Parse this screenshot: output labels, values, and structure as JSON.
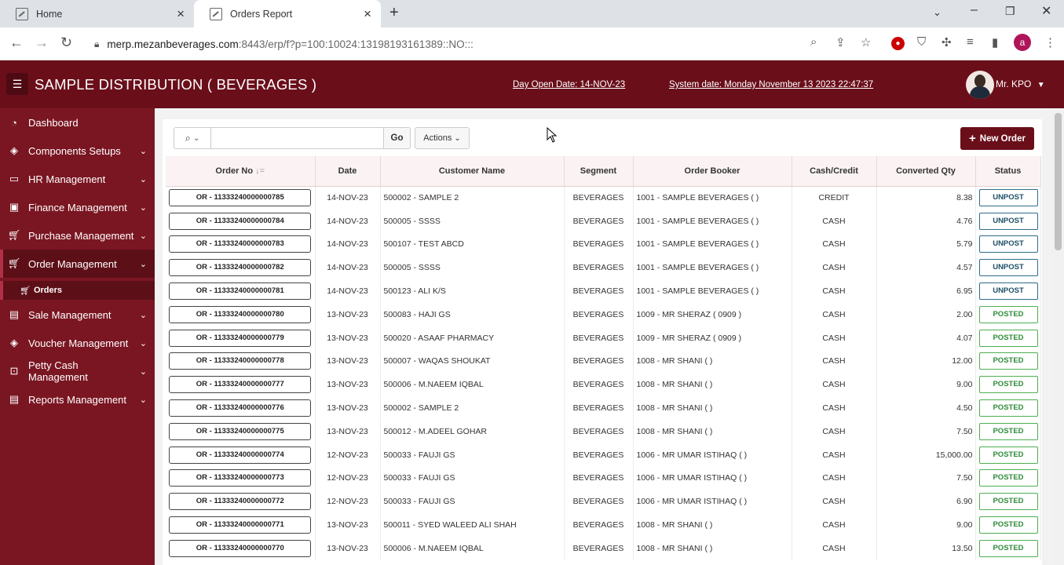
{
  "browser": {
    "tabs": [
      {
        "label": "Home"
      },
      {
        "label": "Orders Report"
      }
    ],
    "url_host": "merp.mezanbeverages.com",
    "url_rest": ":8443/erp/f?p=100:10024:13198193161389::NO:::"
  },
  "header": {
    "title": "SAMPLE DISTRIBUTION ( BEVERAGES )",
    "day_open": "Day Open Date: 14-NOV-23",
    "system_date": "System date: Monday November 13 2023 22:47:37",
    "user": "Mr. KPO"
  },
  "sidebar": {
    "items": [
      {
        "label": "Dashboard",
        "icon": "dashboard-icon"
      },
      {
        "label": "Components Setups",
        "icon": "layers-icon"
      },
      {
        "label": "HR Management",
        "icon": "user-card-icon"
      },
      {
        "label": "Finance Management",
        "icon": "money-icon"
      },
      {
        "label": "Purchase Management",
        "icon": "cart-icon"
      },
      {
        "label": "Order Management",
        "icon": "cart-icon"
      },
      {
        "label": "Sale Management",
        "icon": "document-icon"
      },
      {
        "label": "Voucher Management",
        "icon": "layers-icon"
      },
      {
        "label": "Petty Cash Management",
        "icon": "inbox-icon"
      },
      {
        "label": "Reports Management",
        "icon": "document-icon"
      }
    ],
    "sub_item": "Orders"
  },
  "toolbar": {
    "search_placeholder": "",
    "go_label": "Go",
    "actions_label": "Actions",
    "new_order_label": "New Order"
  },
  "table": {
    "headers": [
      "Order No",
      "Date",
      "Customer Name",
      "Segment",
      "Order Booker",
      "Cash/Credit",
      "Converted Qty",
      "Status"
    ],
    "rows": [
      {
        "order": "OR - 11333240000000785",
        "date": "14-NOV-23",
        "customer": "500002 - SAMPLE 2",
        "segment": "BEVERAGES",
        "booker": "1001 - SAMPLE BEVERAGES ( )",
        "cash": "CREDIT",
        "qty": "8.38",
        "status": "UNPOST"
      },
      {
        "order": "OR - 11333240000000784",
        "date": "14-NOV-23",
        "customer": "500005 - SSSS",
        "segment": "BEVERAGES",
        "booker": "1001 - SAMPLE BEVERAGES ( )",
        "cash": "CASH",
        "qty": "4.76",
        "status": "UNPOST"
      },
      {
        "order": "OR - 11333240000000783",
        "date": "14-NOV-23",
        "customer": "500107 - TEST ABCD",
        "segment": "BEVERAGES",
        "booker": "1001 - SAMPLE BEVERAGES ( )",
        "cash": "CASH",
        "qty": "5.79",
        "status": "UNPOST"
      },
      {
        "order": "OR - 11333240000000782",
        "date": "14-NOV-23",
        "customer": "500005 - SSSS",
        "segment": "BEVERAGES",
        "booker": "1001 - SAMPLE BEVERAGES ( )",
        "cash": "CASH",
        "qty": "4.57",
        "status": "UNPOST"
      },
      {
        "order": "OR - 11333240000000781",
        "date": "14-NOV-23",
        "customer": "500123 - ALI K/S",
        "segment": "BEVERAGES",
        "booker": "1001 - SAMPLE BEVERAGES ( )",
        "cash": "CASH",
        "qty": "6.95",
        "status": "UNPOST"
      },
      {
        "order": "OR - 11333240000000780",
        "date": "13-NOV-23",
        "customer": "500083 - HAJI GS",
        "segment": "BEVERAGES",
        "booker": "1009 - MR SHERAZ ( 0909 )",
        "cash": "CASH",
        "qty": "2.00",
        "status": "POSTED"
      },
      {
        "order": "OR - 11333240000000779",
        "date": "13-NOV-23",
        "customer": "500020 - ASAAF PHARMACY",
        "segment": "BEVERAGES",
        "booker": "1009 - MR SHERAZ ( 0909 )",
        "cash": "CASH",
        "qty": "4.07",
        "status": "POSTED"
      },
      {
        "order": "OR - 11333240000000778",
        "date": "13-NOV-23",
        "customer": "500007 - WAQAS SHOUKAT",
        "segment": "BEVERAGES",
        "booker": "1008 - MR SHANI ( )",
        "cash": "CASH",
        "qty": "12.00",
        "status": "POSTED"
      },
      {
        "order": "OR - 11333240000000777",
        "date": "13-NOV-23",
        "customer": "500006 - M.NAEEM IQBAL",
        "segment": "BEVERAGES",
        "booker": "1008 - MR SHANI ( )",
        "cash": "CASH",
        "qty": "9.00",
        "status": "POSTED"
      },
      {
        "order": "OR - 11333240000000776",
        "date": "13-NOV-23",
        "customer": "500002 - SAMPLE 2",
        "segment": "BEVERAGES",
        "booker": "1008 - MR SHANI ( )",
        "cash": "CASH",
        "qty": "4.50",
        "status": "POSTED"
      },
      {
        "order": "OR - 11333240000000775",
        "date": "13-NOV-23",
        "customer": "500012 - M.ADEEL GOHAR",
        "segment": "BEVERAGES",
        "booker": "1008 - MR SHANI ( )",
        "cash": "CASH",
        "qty": "7.50",
        "status": "POSTED"
      },
      {
        "order": "OR - 11333240000000774",
        "date": "12-NOV-23",
        "customer": "500033 - FAUJI GS",
        "segment": "BEVERAGES",
        "booker": "1006 - MR UMAR ISTIHAQ ( )",
        "cash": "CASH",
        "qty": "15,000.00",
        "status": "POSTED"
      },
      {
        "order": "OR - 11333240000000773",
        "date": "12-NOV-23",
        "customer": "500033 - FAUJI GS",
        "segment": "BEVERAGES",
        "booker": "1006 - MR UMAR ISTIHAQ ( )",
        "cash": "CASH",
        "qty": "7.50",
        "status": "POSTED"
      },
      {
        "order": "OR - 11333240000000772",
        "date": "12-NOV-23",
        "customer": "500033 - FAUJI GS",
        "segment": "BEVERAGES",
        "booker": "1006 - MR UMAR ISTIHAQ ( )",
        "cash": "CASH",
        "qty": "6.90",
        "status": "POSTED"
      },
      {
        "order": "OR - 11333240000000771",
        "date": "13-NOV-23",
        "customer": "500011 - SYED WALEED ALI SHAH",
        "segment": "BEVERAGES",
        "booker": "1008 - MR SHANI ( )",
        "cash": "CASH",
        "qty": "9.00",
        "status": "POSTED"
      },
      {
        "order": "OR - 11333240000000770",
        "date": "13-NOV-23",
        "customer": "500006 - M.NAEEM IQBAL",
        "segment": "BEVERAGES",
        "booker": "1008 - MR SHANI ( )",
        "cash": "CASH",
        "qty": "13.50",
        "status": "POSTED"
      }
    ]
  },
  "colors": {
    "header_bg": "#6a0f1a",
    "sidebar_bg": "#7a1622",
    "posted": "#4caf50",
    "unpost": "#2d6d8a"
  }
}
